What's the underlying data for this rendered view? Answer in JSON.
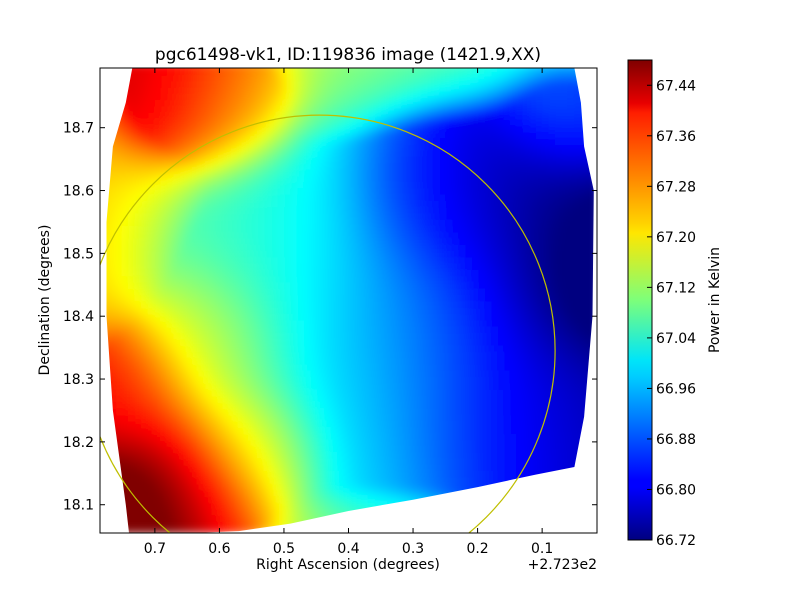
{
  "chart_data": {
    "type": "heatmap",
    "title": "pgc61498-vk1, ID:119836 image (1421.9,XX)",
    "xlabel": "Right Ascension (degrees)",
    "ylabel": "Declination (degrees)",
    "x_offset_label": "+2.723e2",
    "xlim": [
      0.785,
      0.015
    ],
    "ylim": [
      18.055,
      18.795
    ],
    "x_ticks": [
      {
        "value": 0.7,
        "label": "0.7"
      },
      {
        "value": 0.6,
        "label": "0.6"
      },
      {
        "value": 0.5,
        "label": "0.5"
      },
      {
        "value": 0.4,
        "label": "0.4"
      },
      {
        "value": 0.3,
        "label": "0.3"
      },
      {
        "value": 0.2,
        "label": "0.2"
      },
      {
        "value": 0.1,
        "label": "0.1"
      }
    ],
    "y_ticks": [
      {
        "value": 18.1,
        "label": "18.1"
      },
      {
        "value": 18.2,
        "label": "18.2"
      },
      {
        "value": 18.3,
        "label": "18.3"
      },
      {
        "value": 18.4,
        "label": "18.4"
      },
      {
        "value": 18.5,
        "label": "18.5"
      },
      {
        "value": 18.6,
        "label": "18.6"
      },
      {
        "value": 18.7,
        "label": "18.7"
      }
    ],
    "colorbar": {
      "label": "Power in Kelvin",
      "colormap": "jet",
      "range": [
        66.72,
        67.48
      ],
      "ticks": [
        {
          "value": 66.72,
          "label": "66.72"
        },
        {
          "value": 66.8,
          "label": "66.80"
        },
        {
          "value": 66.88,
          "label": "66.88"
        },
        {
          "value": 66.96,
          "label": "66.96"
        },
        {
          "value": 67.04,
          "label": "67.04"
        },
        {
          "value": 67.12,
          "label": "67.12"
        },
        {
          "value": 67.2,
          "label": "67.20"
        },
        {
          "value": 67.28,
          "label": "67.28"
        },
        {
          "value": 67.36,
          "label": "67.36"
        },
        {
          "value": 67.44,
          "label": "67.44"
        }
      ]
    },
    "circle": {
      "center_ra": 0.445,
      "center_dec": 18.345,
      "radius_deg": 0.375,
      "color": "#bfbf00"
    },
    "map_outline": [
      [
        0.735,
        18.795
      ],
      [
        0.57,
        18.795
      ],
      [
        0.05,
        18.795
      ],
      [
        0.04,
        18.74
      ],
      [
        0.035,
        18.67
      ],
      [
        0.02,
        18.6
      ],
      [
        0.022,
        18.4
      ],
      [
        0.035,
        18.24
      ],
      [
        0.05,
        18.16
      ],
      [
        0.11,
        18.148
      ],
      [
        0.2,
        18.128
      ],
      [
        0.3,
        18.108
      ],
      [
        0.4,
        18.09
      ],
      [
        0.49,
        18.07
      ],
      [
        0.57,
        18.058
      ],
      [
        0.64,
        18.055
      ],
      [
        0.74,
        18.055
      ],
      [
        0.745,
        18.1
      ],
      [
        0.765,
        18.25
      ],
      [
        0.775,
        18.4
      ],
      [
        0.775,
        18.55
      ],
      [
        0.765,
        18.67
      ],
      [
        0.745,
        18.74
      ]
    ],
    "base_level": 67.12,
    "features": [
      {
        "ra": 0.71,
        "dec": 18.1,
        "value": 67.48,
        "width_deg": 0.07
      },
      {
        "ra": 0.63,
        "dec": 18.13,
        "value": 67.32,
        "width_deg": 0.08
      },
      {
        "ra": 0.74,
        "dec": 18.27,
        "value": 67.28,
        "width_deg": 0.07
      },
      {
        "ra": 0.67,
        "dec": 18.76,
        "value": 67.32,
        "width_deg": 0.07
      },
      {
        "ra": 0.58,
        "dec": 18.74,
        "value": 67.24,
        "width_deg": 0.06
      },
      {
        "ra": 0.42,
        "dec": 18.42,
        "value": 66.98,
        "width_deg": 0.16
      },
      {
        "ra": 0.38,
        "dec": 18.3,
        "value": 66.98,
        "width_deg": 0.12
      },
      {
        "ra": 0.48,
        "dec": 18.5,
        "value": 67.0,
        "width_deg": 0.1
      },
      {
        "ra": 0.3,
        "dec": 18.4,
        "value": 66.9,
        "width_deg": 0.1
      },
      {
        "ra": 0.22,
        "dec": 18.57,
        "value": 66.82,
        "width_deg": 0.08
      },
      {
        "ra": 0.28,
        "dec": 18.57,
        "value": 66.85,
        "width_deg": 0.07
      },
      {
        "ra": 0.07,
        "dec": 18.43,
        "value": 66.76,
        "width_deg": 0.07
      },
      {
        "ra": 0.08,
        "dec": 18.52,
        "value": 66.8,
        "width_deg": 0.08
      },
      {
        "ra": 0.12,
        "dec": 18.58,
        "value": 66.82,
        "width_deg": 0.08
      },
      {
        "ra": 0.1,
        "dec": 18.3,
        "value": 66.86,
        "width_deg": 0.08
      },
      {
        "ra": 0.1,
        "dec": 18.2,
        "value": 66.88,
        "width_deg": 0.08
      },
      {
        "ra": 0.2,
        "dec": 18.25,
        "value": 66.9,
        "width_deg": 0.08
      },
      {
        "ra": 0.18,
        "dec": 18.4,
        "value": 66.88,
        "width_deg": 0.08
      },
      {
        "ra": 0.06,
        "dec": 18.7,
        "value": 66.98,
        "width_deg": 0.06
      },
      {
        "ra": 0.6,
        "dec": 18.35,
        "value": 67.14,
        "width_deg": 0.07
      },
      {
        "ra": 0.55,
        "dec": 18.2,
        "value": 67.16,
        "width_deg": 0.06
      }
    ]
  }
}
